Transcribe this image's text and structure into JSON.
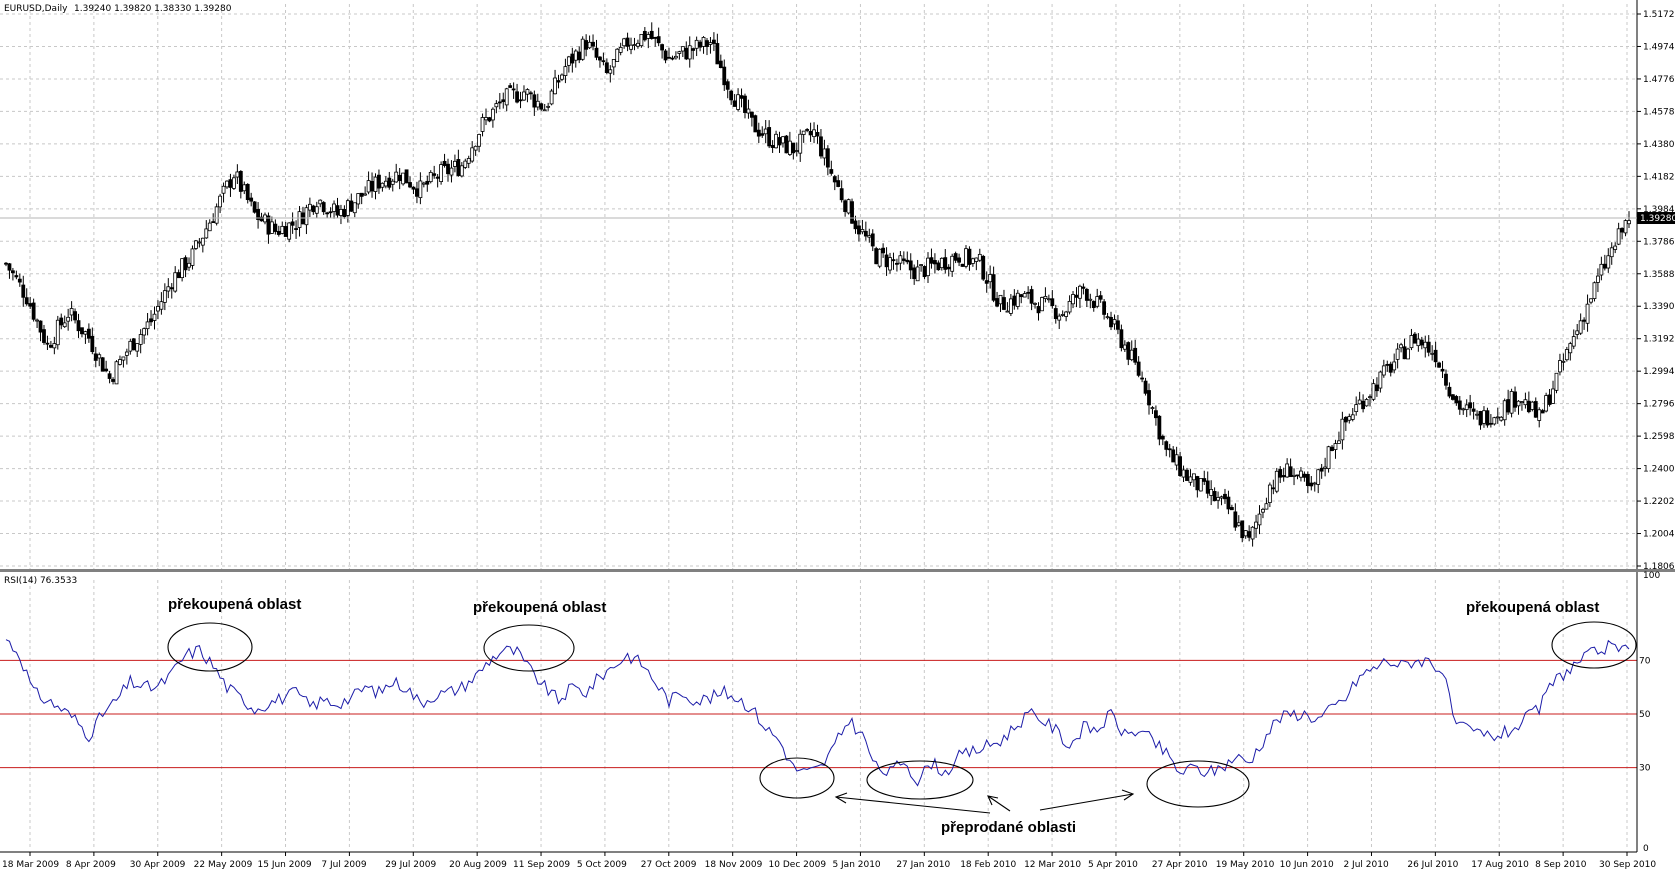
{
  "chart_data": [
    {
      "type": "candlestick",
      "header": {
        "symbol": "EURUSD,Daily",
        "ohlc": "1.39240 1.39820 1.38330 1.39280"
      },
      "y_ticks": [
        "1.51720",
        "1.49740",
        "1.47760",
        "1.45780",
        "1.43800",
        "1.41820",
        "1.39840",
        "1.37860",
        "1.35880",
        "1.33900",
        "1.31920",
        "1.29940",
        "1.27960",
        "1.25980",
        "1.24000",
        "1.22020",
        "1.20040",
        "1.18060"
      ],
      "y_tick_values": [
        1.5172,
        1.4974,
        1.4776,
        1.4578,
        1.438,
        1.4182,
        1.3984,
        1.3786,
        1.3588,
        1.339,
        1.3192,
        1.2994,
        1.2796,
        1.2598,
        1.24,
        1.2202,
        1.2004,
        1.1806
      ],
      "current_price": "1.39280",
      "current_price_value": 1.3928,
      "ylim": [
        1.1806,
        1.5172
      ],
      "x_range": [
        "18 Mar 2009",
        "30 Sep 2010"
      ],
      "bar_count": 400,
      "close_anchors": [
        [
          0,
          1.365
        ],
        [
          6,
          1.345
        ],
        [
          12,
          1.315
        ],
        [
          18,
          1.335
        ],
        [
          24,
          1.32
        ],
        [
          30,
          1.295
        ],
        [
          36,
          1.315
        ],
        [
          42,
          1.33
        ],
        [
          48,
          1.355
        ],
        [
          54,
          1.37
        ],
        [
          60,
          1.395
        ],
        [
          66,
          1.42
        ],
        [
          72,
          1.395
        ],
        [
          78,
          1.385
        ],
        [
          84,
          1.39
        ],
        [
          90,
          1.405
        ],
        [
          96,
          1.395
        ],
        [
          102,
          1.405
        ],
        [
          108,
          1.415
        ],
        [
          114,
          1.42
        ],
        [
          120,
          1.41
        ],
        [
          126,
          1.42
        ],
        [
          132,
          1.425
        ],
        [
          138,
          1.45
        ],
        [
          144,
          1.465
        ],
        [
          150,
          1.47
        ],
        [
          156,
          1.46
        ],
        [
          162,
          1.485
        ],
        [
          168,
          1.5
        ],
        [
          174,
          1.48
        ],
        [
          180,
          1.5
        ],
        [
          186,
          1.505
        ],
        [
          192,
          1.49
        ],
        [
          198,
          1.495
        ],
        [
          204,
          1.5
        ],
        [
          210,
          1.47
        ],
        [
          216,
          1.45
        ],
        [
          222,
          1.44
        ],
        [
          228,
          1.435
        ],
        [
          234,
          1.445
        ],
        [
          240,
          1.415
        ],
        [
          246,
          1.39
        ],
        [
          252,
          1.37
        ],
        [
          258,
          1.365
        ],
        [
          264,
          1.36
        ],
        [
          270,
          1.365
        ],
        [
          276,
          1.37
        ],
        [
          282,
          1.365
        ],
        [
          288,
          1.34
        ],
        [
          294,
          1.345
        ],
        [
          300,
          1.34
        ],
        [
          306,
          1.335
        ],
        [
          312,
          1.35
        ],
        [
          318,
          1.335
        ],
        [
          324,
          1.315
        ],
        [
          330,
          1.29
        ],
        [
          336,
          1.25
        ],
        [
          342,
          1.235
        ],
        [
          348,
          1.225
        ],
        [
          354,
          1.215
        ],
        [
          360,
          1.195
        ],
        [
          366,
          1.23
        ],
        [
          372,
          1.24
        ],
        [
          378,
          1.225
        ],
        [
          384,
          1.255
        ],
        [
          390,
          1.275
        ],
        [
          396,
          1.29
        ],
        [
          402,
          1.305
        ],
        [
          408,
          1.32
        ],
        [
          414,
          1.31
        ],
        [
          420,
          1.28
        ],
        [
          426,
          1.27
        ],
        [
          432,
          1.275
        ],
        [
          438,
          1.285
        ],
        [
          444,
          1.27
        ],
        [
          450,
          1.3
        ],
        [
          456,
          1.33
        ],
        [
          462,
          1.36
        ],
        [
          468,
          1.385
        ],
        [
          470,
          1.393
        ]
      ],
      "x_labels": [
        "18 Mar 2009",
        "8 Apr 2009",
        "30 Apr 2009",
        "22 May 2009",
        "15 Jun 2009",
        "7 Jul 2009",
        "29 Jul 2009",
        "20 Aug 2009",
        "11 Sep 2009",
        "5 Oct 2009",
        "27 Oct 2009",
        "18 Nov 2009",
        "10 Dec 2009",
        "5 Jan 2010",
        "27 Jan 2010",
        "18 Feb 2010",
        "12 Mar 2010",
        "5 Apr 2010",
        "27 Apr 2010",
        "19 May 2010",
        "10 Jun 2010",
        "2 Jul 2010",
        "26 Jul 2010",
        "17 Aug 2010",
        "8 Sep 2010",
        "30 Sep 2010"
      ]
    },
    {
      "type": "line",
      "header": "RSI(14) 76.3533",
      "ylim": [
        0,
        100
      ],
      "y_ticks": [
        "100",
        "0"
      ],
      "levels": [
        {
          "value": 70,
          "label": "70"
        },
        {
          "value": 50,
          "label": "50"
        },
        {
          "value": 30,
          "label": "30"
        }
      ],
      "line_color": "#1c1ca8",
      "level_color": "#c81c1c",
      "anchors": [
        [
          0,
          78
        ],
        [
          4,
          72
        ],
        [
          8,
          58
        ],
        [
          12,
          55
        ],
        [
          16,
          52
        ],
        [
          20,
          48
        ],
        [
          24,
          42
        ],
        [
          28,
          50
        ],
        [
          32,
          55
        ],
        [
          36,
          62
        ],
        [
          40,
          60
        ],
        [
          44,
          60
        ],
        [
          48,
          65
        ],
        [
          52,
          72
        ],
        [
          56,
          74
        ],
        [
          60,
          68
        ],
        [
          64,
          60
        ],
        [
          68,
          56
        ],
        [
          72,
          52
        ],
        [
          76,
          54
        ],
        [
          80,
          56
        ],
        [
          84,
          58
        ],
        [
          88,
          53
        ],
        [
          92,
          55
        ],
        [
          96,
          54
        ],
        [
          100,
          56
        ],
        [
          104,
          60
        ],
        [
          108,
          58
        ],
        [
          112,
          62
        ],
        [
          116,
          60
        ],
        [
          120,
          54
        ],
        [
          124,
          57
        ],
        [
          128,
          58
        ],
        [
          132,
          60
        ],
        [
          136,
          64
        ],
        [
          140,
          70
        ],
        [
          144,
          74
        ],
        [
          148,
          73
        ],
        [
          152,
          66
        ],
        [
          156,
          60
        ],
        [
          160,
          55
        ],
        [
          164,
          60
        ],
        [
          168,
          58
        ],
        [
          172,
          64
        ],
        [
          176,
          68
        ],
        [
          180,
          72
        ],
        [
          184,
          69
        ],
        [
          188,
          62
        ],
        [
          192,
          55
        ],
        [
          196,
          58
        ],
        [
          200,
          55
        ],
        [
          204,
          56
        ],
        [
          208,
          58
        ],
        [
          212,
          56
        ],
        [
          216,
          52
        ],
        [
          220,
          45
        ],
        [
          224,
          40
        ],
        [
          228,
          30
        ],
        [
          232,
          28
        ],
        [
          236,
          30
        ],
        [
          240,
          38
        ],
        [
          244,
          48
        ],
        [
          248,
          42
        ],
        [
          252,
          30
        ],
        [
          256,
          28
        ],
        [
          260,
          33
        ],
        [
          264,
          25
        ],
        [
          268,
          32
        ],
        [
          272,
          28
        ],
        [
          276,
          34
        ],
        [
          280,
          36
        ],
        [
          284,
          38
        ],
        [
          288,
          40
        ],
        [
          292,
          45
        ],
        [
          296,
          50
        ],
        [
          300,
          48
        ],
        [
          304,
          44
        ],
        [
          308,
          38
        ],
        [
          312,
          45
        ],
        [
          316,
          44
        ],
        [
          320,
          50
        ],
        [
          324,
          42
        ],
        [
          328,
          44
        ],
        [
          332,
          40
        ],
        [
          336,
          35
        ],
        [
          340,
          28
        ],
        [
          344,
          30
        ],
        [
          348,
          28
        ],
        [
          352,
          30
        ],
        [
          356,
          34
        ],
        [
          360,
          32
        ],
        [
          364,
          40
        ],
        [
          368,
          48
        ],
        [
          372,
          50
        ],
        [
          376,
          50
        ],
        [
          380,
          48
        ],
        [
          384,
          52
        ],
        [
          388,
          56
        ],
        [
          392,
          64
        ],
        [
          396,
          67
        ],
        [
          400,
          70
        ],
        [
          404,
          68
        ],
        [
          408,
          70
        ],
        [
          412,
          70
        ],
        [
          416,
          66
        ],
        [
          420,
          45
        ],
        [
          424,
          44
        ],
        [
          428,
          42
        ],
        [
          432,
          42
        ],
        [
          436,
          44
        ],
        [
          440,
          48
        ],
        [
          444,
          52
        ],
        [
          448,
          62
        ],
        [
          452,
          66
        ],
        [
          456,
          70
        ],
        [
          460,
          73
        ],
        [
          464,
          75
        ],
        [
          468,
          73
        ],
        [
          470,
          76
        ]
      ],
      "annotations": {
        "overbought_1": "překoupená oblast",
        "overbought_2": "překoupená oblast",
        "overbought_3": "překoupená oblast",
        "oversold": "přeprodané oblasti"
      }
    }
  ]
}
